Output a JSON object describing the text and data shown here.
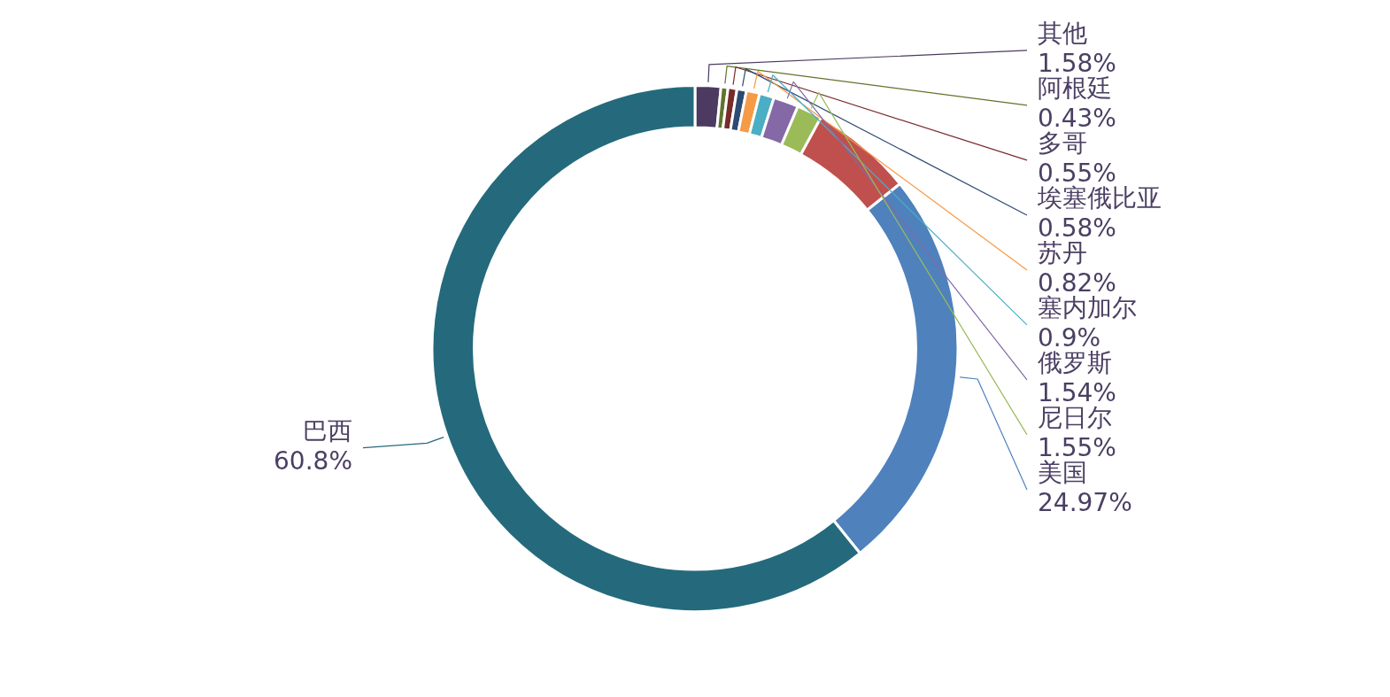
{
  "chart_data": {
    "type": "donut",
    "categories": [
      "其他",
      "阿根廷",
      "多哥",
      "埃塞俄比亚",
      "苏丹",
      "塞内加尔",
      "俄罗斯",
      "尼日尔",
      null,
      "美国",
      "巴西"
    ],
    "values": [
      1.58,
      0.43,
      0.55,
      0.58,
      0.82,
      0.9,
      1.54,
      1.55,
      6.28,
      24.97,
      60.8
    ],
    "value_labels": [
      "1.58%",
      "0.43%",
      "0.55%",
      "0.58%",
      "0.82%",
      "0.9%",
      "1.54%",
      "1.55%",
      null,
      "24.97%",
      "60.8%"
    ],
    "colors": [
      "#4c3a60",
      "#5f742b",
      "#772b2a",
      "#2c4a72",
      "#f59a45",
      "#4aaec4",
      "#8469a6",
      "#9bbb59",
      "#c0504d",
      "#4f81bd",
      "#246a7c"
    ]
  }
}
